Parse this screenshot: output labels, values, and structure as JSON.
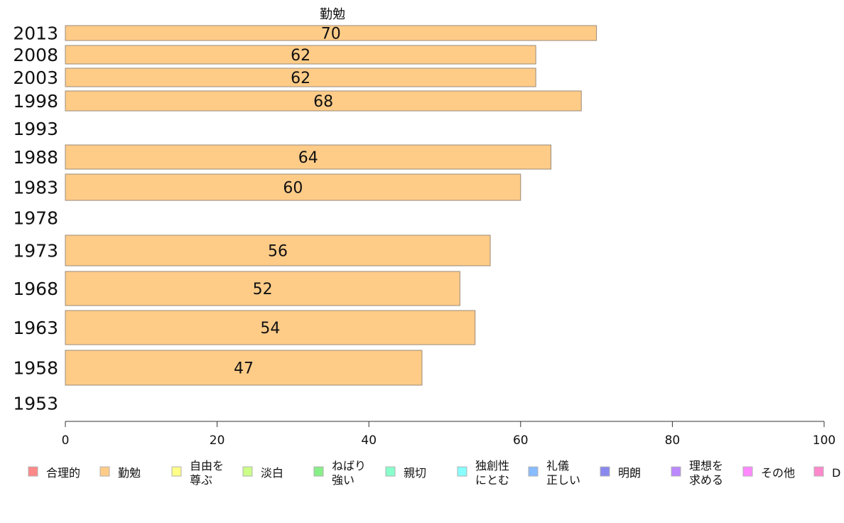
{
  "chart_data": {
    "type": "bar",
    "orientation": "horizontal",
    "title": "勤勉",
    "categories": [
      "2013",
      "2008",
      "2003",
      "1998",
      "1993",
      "1988",
      "1983",
      "1978",
      "1973",
      "1968",
      "1963",
      "1958",
      "1953"
    ],
    "series": [
      {
        "name": "勤勉",
        "color": "#ffcc88",
        "values": [
          70,
          62,
          62,
          68,
          null,
          64,
          60,
          null,
          56,
          52,
          54,
          47,
          null
        ]
      }
    ],
    "xlim": [
      0,
      100
    ],
    "xticks": [
      "0",
      "20",
      "40",
      "60",
      "80",
      "100"
    ],
    "grid": false,
    "legend_position": "bottom",
    "legend": [
      {
        "label": "合理的",
        "color": "#ff8888"
      },
      {
        "label": "勤勉",
        "color": "#ffcc88"
      },
      {
        "label": "自由を\n尊ぶ",
        "color": "#ffff88"
      },
      {
        "label": "淡白",
        "color": "#ccff88"
      },
      {
        "label": "ねばり\n強い",
        "color": "#88ee88"
      },
      {
        "label": "親切",
        "color": "#88ffcc"
      },
      {
        "label": "独創性\nにとむ",
        "color": "#88ffff"
      },
      {
        "label": "礼儀\n正しい",
        "color": "#88bbff"
      },
      {
        "label": "明朗",
        "color": "#8888ee"
      },
      {
        "label": "理想を\n求める",
        "color": "#bb88ff"
      },
      {
        "label": "その他",
        "color": "#ff88ff"
      },
      {
        "label": "D",
        "color": "#ff88cc"
      }
    ]
  }
}
